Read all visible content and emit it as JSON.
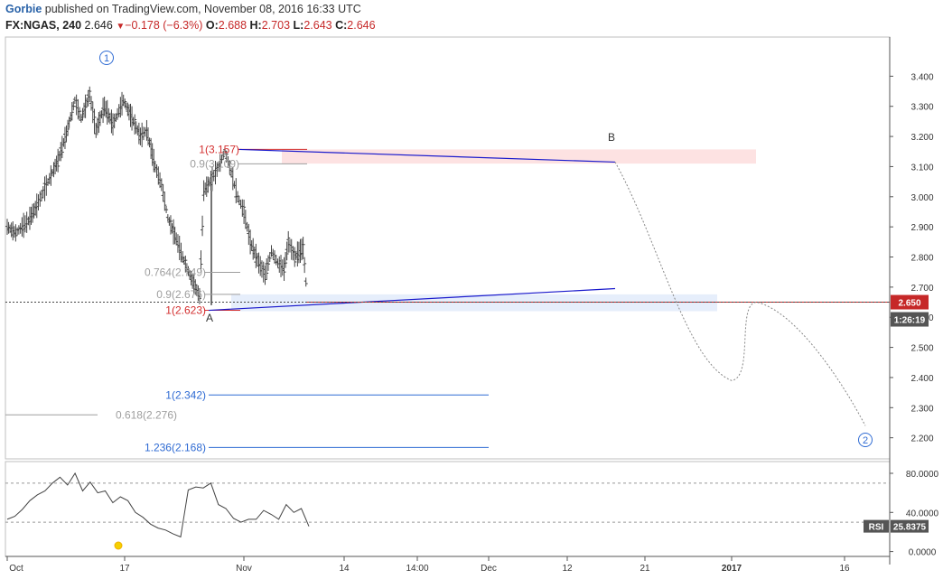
{
  "header": {
    "author": "Gorbie",
    "published": "published on TradingView.com, November 08, 2016 16:33 UTC",
    "symbol": "FX:NGAS, 240",
    "last": "2.646",
    "change": "−0.178 (−6.3%)",
    "open_label": "O:",
    "open": "2.688",
    "high_label": "H:",
    "high": "2.703",
    "low_label": "L:",
    "low": "2.643",
    "close_label": "C:",
    "close": "2.646"
  },
  "chart_data": {
    "type": "candlestick",
    "symbol": "FX:NGAS",
    "interval": "240",
    "x_tick_labels": [
      "Oct",
      "17",
      "Nov",
      "14",
      "14:00",
      "Dec",
      "12",
      "21",
      "2017",
      "16"
    ],
    "y_ticks": [
      "3.400",
      "3.300",
      "3.200",
      "3.100",
      "3.000",
      "2.900",
      "2.800",
      "2.700",
      "2.600",
      "2.500",
      "2.400",
      "2.300",
      "2.200"
    ],
    "ylim": [
      2.13,
      3.53
    ],
    "price_path": [
      [
        0,
        2.9
      ],
      [
        0.4,
        2.88
      ],
      [
        1.0,
        2.92
      ],
      [
        1.4,
        2.97
      ],
      [
        2.0,
        3.06
      ],
      [
        2.4,
        3.12
      ],
      [
        2.8,
        3.21
      ],
      [
        3.2,
        3.32
      ],
      [
        3.5,
        3.26
      ],
      [
        3.9,
        3.34
      ],
      [
        4.2,
        3.22
      ],
      [
        4.6,
        3.3
      ],
      [
        5.0,
        3.24
      ],
      [
        5.5,
        3.32
      ],
      [
        5.9,
        3.26
      ],
      [
        6.3,
        3.2
      ],
      [
        6.6,
        3.22
      ],
      [
        7.0,
        3.1
      ],
      [
        7.3,
        3.04
      ],
      [
        7.6,
        2.93
      ],
      [
        8.0,
        2.86
      ],
      [
        8.3,
        2.8
      ],
      [
        8.7,
        2.73
      ],
      [
        9.1,
        2.67
      ],
      [
        9.3,
        3.02
      ],
      [
        9.7,
        3.06
      ],
      [
        10.0,
        3.1
      ],
      [
        10.3,
        3.15
      ],
      [
        10.6,
        3.08
      ],
      [
        10.9,
        3.0
      ],
      [
        11.2,
        2.95
      ],
      [
        11.5,
        2.85
      ],
      [
        11.9,
        2.78
      ],
      [
        12.2,
        2.74
      ],
      [
        12.5,
        2.82
      ],
      [
        12.8,
        2.78
      ],
      [
        13.1,
        2.76
      ],
      [
        13.3,
        2.85
      ],
      [
        13.6,
        2.8
      ],
      [
        14.0,
        2.83
      ],
      [
        14.2,
        2.66
      ]
    ],
    "current_price": "2.650",
    "countdown": "1:26:19",
    "wave_labels": [
      {
        "text": "1",
        "circled": true
      },
      {
        "text": "2",
        "circled": true
      },
      {
        "text": "A",
        "circled": false
      },
      {
        "text": "B",
        "circled": false
      }
    ],
    "fib_levels": [
      {
        "label": "1(3.157)",
        "value": 3.157,
        "color": "#d32f2f"
      },
      {
        "label": "0.9(3.109)",
        "value": 3.109,
        "color": "#9e9e9e"
      },
      {
        "label": "0.764(2.749)",
        "value": 2.749,
        "color": "#9e9e9e"
      },
      {
        "label": "0.9(2.676)",
        "value": 2.676,
        "color": "#9e9e9e"
      },
      {
        "label": "1(2.623)",
        "value": 2.623,
        "color": "#d32f2f"
      },
      {
        "label": "1(2.342)",
        "value": 2.342,
        "color": "#2f6bd3"
      },
      {
        "label": "0.618(2.276)",
        "value": 2.276,
        "color": "#9e9e9e"
      },
      {
        "label": "1.236(2.168)",
        "value": 2.168,
        "color": "#2f6bd3"
      }
    ],
    "triangle": {
      "upper": [
        3.157,
        3.115
      ],
      "lower": [
        2.623,
        2.695
      ]
    },
    "zones": [
      {
        "from": 3.11,
        "to": 3.157,
        "color": "#fde2e2"
      },
      {
        "from": 2.62,
        "to": 2.676,
        "color": "#e6eefb"
      }
    ],
    "projection": [
      3.115,
      2.39,
      2.65,
      2.24
    ],
    "rsi": {
      "label": "RSI",
      "value": "25.8375",
      "y_ticks": [
        "80.0000",
        "40.0000",
        "0.0000"
      ],
      "ylim": [
        -5,
        92
      ],
      "band": [
        70,
        30
      ],
      "values": [
        33,
        36,
        43,
        52,
        58,
        62,
        70,
        76,
        68,
        80,
        62,
        71,
        60,
        62,
        50,
        56,
        52,
        40,
        35,
        28,
        24,
        22,
        18,
        15,
        63,
        66,
        65,
        70,
        48,
        44,
        34,
        30,
        33,
        33,
        42,
        38,
        33,
        48,
        40,
        44,
        25.8
      ]
    },
    "colors": {
      "candle": "#444444",
      "price_line": "#c62828",
      "triangle": "#1a1acc",
      "axis": "#555555",
      "price_tag_bg": "#c62828"
    }
  }
}
